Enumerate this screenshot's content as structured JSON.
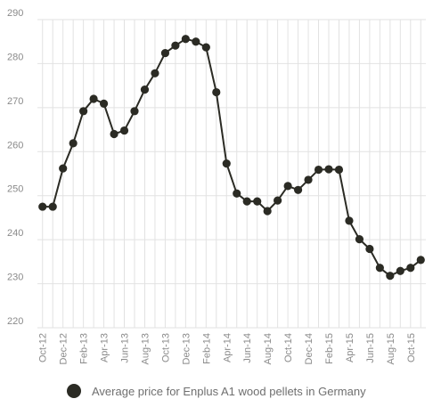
{
  "chart_data": {
    "type": "line",
    "title": "",
    "xlabel": "",
    "ylabel": "",
    "ylim": [
      220,
      290
    ],
    "yticks": [
      "220",
      "230",
      "240",
      "250",
      "260",
      "270",
      "280",
      "290"
    ],
    "xtick_labels": [
      "Oct-12",
      "Dec-12",
      "Feb-13",
      "Apr-13",
      "Jun-13",
      "Aug-13",
      "Oct-13",
      "Dec-13",
      "Feb-14",
      "Apr-14",
      "Jun-14",
      "Aug-14",
      "Oct-14",
      "Dec-14",
      "Feb-15",
      "Apr-15",
      "Jun-15",
      "Aug-15",
      "Oct-15"
    ],
    "grid": true,
    "legend_position": "bottom",
    "series": [
      {
        "name": "Average price for Enplus A1 wood pellets in Germany",
        "color": "#2b2b24",
        "x": [
          "Oct-12",
          "Nov-12",
          "Dec-12",
          "Jan-13",
          "Feb-13",
          "Mar-13",
          "Apr-13",
          "May-13",
          "Jun-13",
          "Jul-13",
          "Aug-13",
          "Sep-13",
          "Oct-13",
          "Nov-13",
          "Dec-13",
          "Jan-14",
          "Feb-14",
          "Mar-14",
          "Apr-14",
          "May-14",
          "Jun-14",
          "Jul-14",
          "Aug-14",
          "Sep-14",
          "Oct-14",
          "Nov-14",
          "Dec-14",
          "Jan-15",
          "Feb-15",
          "Mar-15",
          "Apr-15",
          "May-15",
          "Jun-15",
          "Jul-15",
          "Aug-15",
          "Sep-15",
          "Oct-15",
          "Nov-15"
        ],
        "values": [
          247.5,
          247.5,
          256.2,
          261.9,
          269.2,
          272.0,
          270.9,
          264.0,
          264.8,
          269.2,
          274.1,
          277.8,
          282.4,
          284.1,
          285.6,
          285.0,
          283.7,
          273.5,
          257.3,
          250.5,
          248.7,
          248.7,
          246.5,
          248.9,
          252.2,
          251.3,
          253.6,
          255.9,
          256.0,
          255.9,
          244.3,
          240.1,
          237.9,
          233.6,
          231.8,
          232.9,
          233.6,
          235.4
        ]
      }
    ]
  }
}
